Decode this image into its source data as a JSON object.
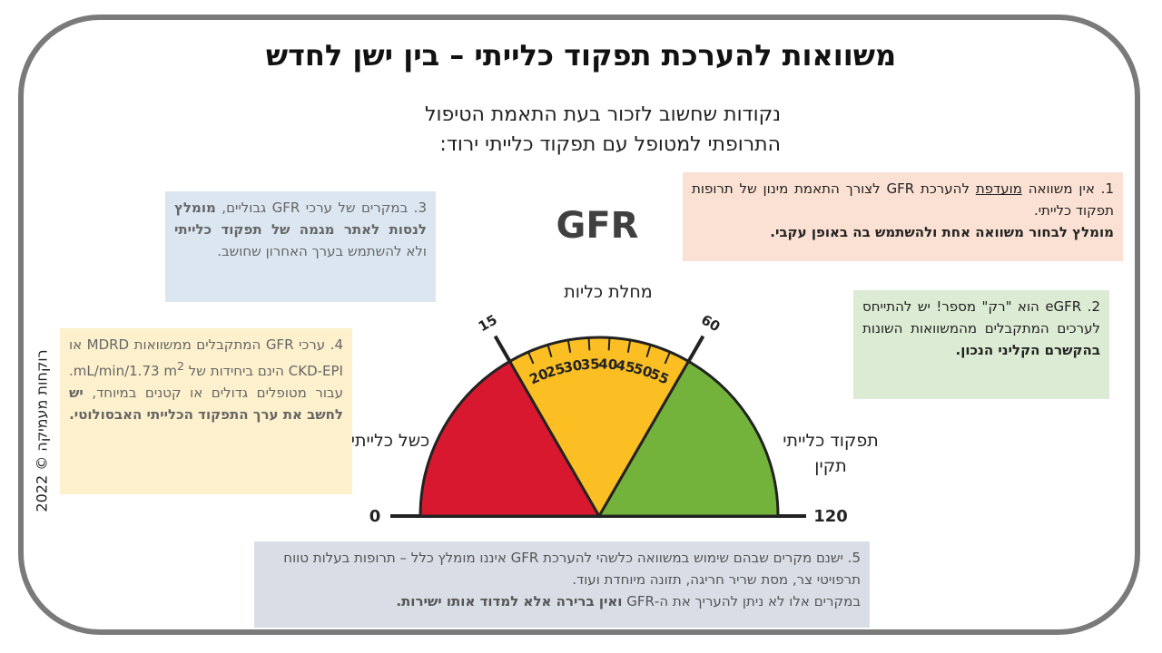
{
  "title": "משוואות להערכת תפקוד כלייתי – בין ישן לחדש",
  "subtitle": {
    "line1": "נקודות שחשוב לזכור בעת התאמת הטיפול",
    "line2": "התרופתי למטופל עם תפקוד כלייתי ירוד:"
  },
  "point1": {
    "a": "1. אין משוואה ",
    "b": "מועדפת",
    "c": " להערכת GFR לצורך התאמת מינון של תרופות תפקוד כלייתי.",
    "bold": "מומלץ לבחור משוואה אחת ולהשתמש בה באופן עקבי."
  },
  "point2": {
    "a": "2. eGFR הוא \"רק\" מספר! יש להתייחס לערכים המתקבלים מהמשוואות השונות ",
    "bold": "בהקשרם הקליני הנכון."
  },
  "point3": {
    "a": "3. במקרים של ערכי GFR גבוליים, ",
    "bold": "מומלץ לנסות לאתר מגמה של תפקוד כלייתי",
    "c": " ולא להשתמש בערך האחרון שחושב."
  },
  "point4": {
    "a": "4. ערכי GFR המתקבלים ממשוואות MDRD או CKD-EPI הינם ביחידות של mL/min/1.73 m",
    "sup": "2",
    "b": ". עבור מטופלים גדולים או קטנים במיוחד, ",
    "bold": "יש לחשב את ערך התפקוד הכלייתי האבסולוטי."
  },
  "point5": {
    "a": "5. ישנם מקרים שבהם שימוש במשוואה כלשהי להערכת GFR איננו מומלץ כלל – תרופות בעלות טווח תרפויטי צר, מסת שריר חריגה, תזונה מיוחדת ועוד.",
    "b": "במקרים אלו לא ניתן להעריך את ה-GFR ",
    "bold": "ואין ברירה אלא למדוד אותו ישירות."
  },
  "gauge": {
    "title": "GFR",
    "label_disease": "מחלת כליות",
    "label_failure": "כשל כלייתי",
    "label_normal": "תפקוד כלייתי תקין",
    "min_label": "0",
    "max_label": "120",
    "ticks": [
      "15",
      "20",
      "25",
      "30",
      "35",
      "40",
      "45",
      "50",
      "55",
      "60"
    ],
    "zones": [
      {
        "from": 0,
        "to": 15,
        "color": "#d7182f"
      },
      {
        "from": 15,
        "to": 60,
        "color": "#fbbf24"
      },
      {
        "from": 60,
        "to": 120,
        "color": "#74b33b"
      }
    ]
  },
  "copyright": "רוקחות מעמיקה © 2022"
}
